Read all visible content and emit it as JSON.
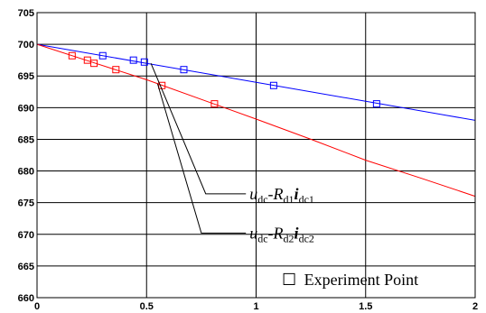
{
  "chart_data": {
    "type": "line",
    "title": "",
    "xlabel": "",
    "ylabel": "",
    "xlim": [
      0,
      2
    ],
    "ylim": [
      660,
      705
    ],
    "xticks": [
      "0",
      "0.5",
      "1",
      "1.5",
      "2"
    ],
    "yticks": [
      "660",
      "665",
      "670",
      "675",
      "680",
      "685",
      "690",
      "695",
      "700",
      "705"
    ],
    "grid": true,
    "series": [
      {
        "color": "#0000ff",
        "x": [
          0,
          0.5,
          1.0,
          1.5,
          2.0
        ],
        "y": [
          700,
          697,
          694,
          691,
          688
        ],
        "points": [
          [
            0.3,
            698.2
          ],
          [
            0.44,
            697.5
          ],
          [
            0.49,
            697.2
          ],
          [
            0.67,
            696.0
          ],
          [
            1.08,
            693.5
          ],
          [
            1.55,
            690.6
          ]
        ]
      },
      {
        "color": "#ff0000",
        "x": [
          0,
          0.25,
          0.5,
          0.75,
          1.0,
          1.25,
          1.5,
          1.75,
          2.0
        ],
        "y": [
          700,
          697.2,
          694.4,
          691.3,
          688.2,
          685.0,
          681.7,
          678.9,
          676.0
        ],
        "points": [
          [
            0.16,
            698.2
          ],
          [
            0.23,
            697.5
          ],
          [
            0.26,
            697.0
          ],
          [
            0.36,
            696.0
          ],
          [
            0.57,
            693.5
          ],
          [
            0.81,
            690.6
          ]
        ]
      }
    ],
    "annotations": [
      {
        "id": "ann1",
        "var": "u",
        "sub1": "dc",
        "mid": "-R",
        "sub2": "d1",
        "var2": "i",
        "sub3": "dc1",
        "pointer": [
          0.52,
          697.0
        ],
        "elbow": [
          0.77,
          676.4
        ],
        "label_at": [
          0.97,
          676.4
        ]
      },
      {
        "id": "ann2",
        "var": "u",
        "sub1": "dc",
        "mid": "-R",
        "sub2": "d2",
        "var2": "i",
        "sub3": "dc2",
        "pointer": [
          0.55,
          693.8
        ],
        "elbow": [
          0.75,
          670.2
        ],
        "label_at": [
          0.97,
          670.2
        ]
      }
    ],
    "legend": {
      "position": "bottom-right",
      "symbol": "☐",
      "label": "Experiment Point"
    }
  }
}
